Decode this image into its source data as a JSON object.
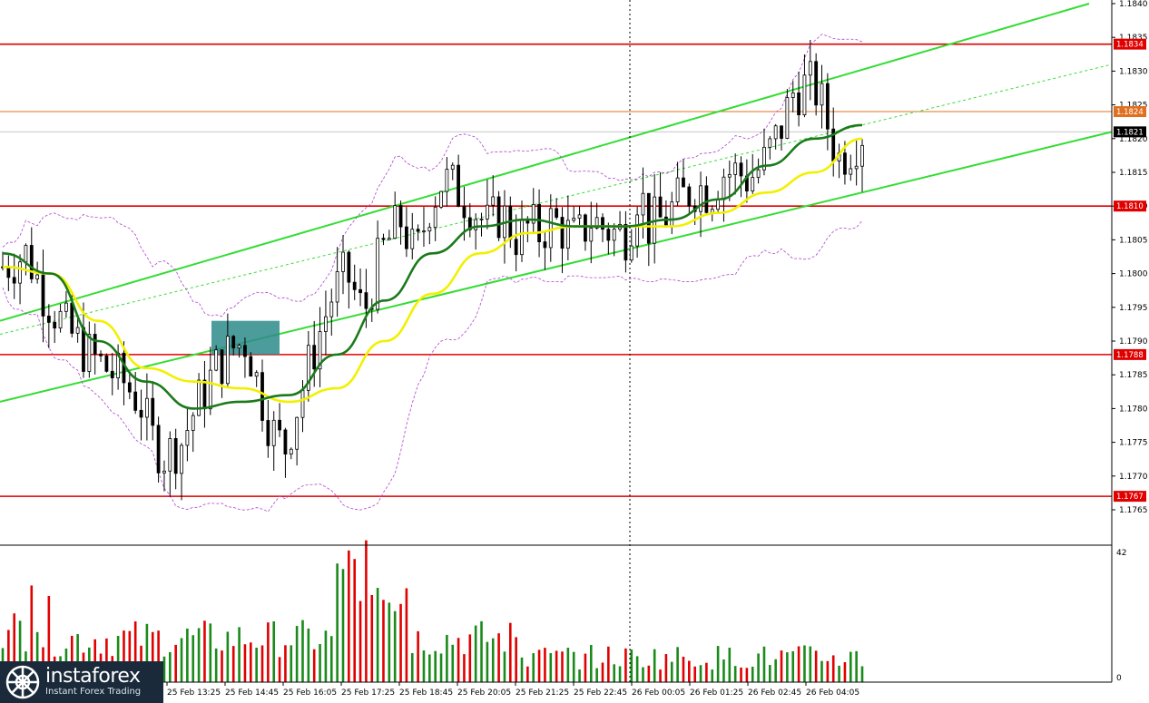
{
  "chart_data": {
    "type": "candlestick",
    "price_axis": {
      "min": 1.1762,
      "max": 1.184,
      "ticks": [
        "1.1840",
        "1.1835",
        "1.1830",
        "1.1825",
        "1.1820",
        "1.1815",
        "1.1810",
        "1.1805",
        "1.1800",
        "1.1795",
        "1.1790",
        "1.1785",
        "1.1780",
        "1.1775",
        "1.1770",
        "1.1765"
      ]
    },
    "time_labels": [
      "25 Feb 13:25",
      "25 Feb 14:45",
      "25 Feb 16:05",
      "25 Feb 17:25",
      "25 Feb 18:45",
      "25 Feb 20:05",
      "25 Feb 21:25",
      "25 Feb 22:45",
      "26 Feb 00:05",
      "26 Feb 01:25",
      "26 Feb 02:45",
      "26 Feb 04:05"
    ],
    "horizontal_levels": [
      {
        "price": 1.1834,
        "label": "1.1834",
        "color": "#e00000"
      },
      {
        "price": 1.1824,
        "label": "1.1824",
        "color": "#e07020"
      },
      {
        "price": 1.181,
        "label": "1.1810",
        "color": "#e00000"
      },
      {
        "price": 1.1788,
        "label": "1.1788",
        "color": "#e00000"
      },
      {
        "price": 1.1767,
        "label": "1.1767",
        "color": "#e00000"
      }
    ],
    "current_price": {
      "price": 1.1821,
      "label": "1.1821"
    },
    "candles": {
      "count": 150,
      "close_path": [
        1.1801,
        1.1803,
        1.1797,
        1.1792,
        1.1788,
        1.1786,
        1.1784,
        1.1781,
        1.1776,
        1.1773,
        1.1775,
        1.178,
        1.1786,
        1.1789,
        1.179,
        1.1784,
        1.1777,
        1.1774,
        1.1781,
        1.1788,
        1.1797,
        1.18,
        1.1794,
        1.1803,
        1.1808,
        1.1802,
        1.181,
        1.1814,
        1.1812,
        1.1809,
        1.1807,
        1.1809,
        1.1805,
        1.1807,
        1.1806,
        1.1808,
        1.1806,
        1.1805,
        1.1808,
        1.1807,
        1.1806,
        1.1806,
        1.1813,
        1.1807,
        1.1808,
        1.1811,
        1.1813,
        1.1812,
        1.1815,
        1.1815,
        1.1814,
        1.1816,
        1.1821,
        1.1827,
        1.1828,
        1.1827,
        1.1822,
        1.1817,
        1.1819,
        1.1821
      ],
      "close_path_x": [
        0,
        7,
        12,
        18,
        25,
        30,
        35,
        40,
        43,
        47,
        52,
        56,
        62,
        67,
        71,
        74,
        78,
        82,
        86,
        90,
        96,
        100,
        105,
        110,
        116,
        120,
        124,
        128,
        133,
        138,
        141,
        145,
        150,
        153,
        156,
        160,
        164,
        167,
        171,
        174,
        178,
        182,
        185,
        188,
        192,
        197,
        202,
        206,
        209,
        214,
        217,
        221,
        226,
        230,
        234,
        237,
        240,
        243,
        247,
        250
      ],
      "up_color": "#000000",
      "down_color": "#000000"
    },
    "moving_averages": [
      {
        "color": "#f2f000",
        "path": [
          1.1801,
          1.18,
          1.1793,
          1.1786,
          1.1784,
          1.1783,
          1.1781,
          1.1783,
          1.179,
          1.1797,
          1.1803,
          1.1806,
          1.1807,
          1.1807,
          1.1807,
          1.1809,
          1.1812,
          1.1815,
          1.182
        ]
      },
      {
        "color": "#1a7a1a",
        "path": [
          1.1803,
          1.18,
          1.179,
          1.1784,
          1.178,
          1.1781,
          1.1782,
          1.1788,
          1.1796,
          1.1803,
          1.1807,
          1.1808,
          1.1807,
          1.1807,
          1.1808,
          1.1811,
          1.1816,
          1.182,
          1.1822
        ]
      }
    ],
    "channel": {
      "color": "#33dd33",
      "upper": [
        [
          0,
          1.1793
        ],
        [
          1200,
          1.184
        ]
      ],
      "lower": [
        [
          0,
          1.1781
        ],
        [
          1225,
          1.1821
        ]
      ],
      "mid_dashed": [
        [
          0,
          1.1791
        ],
        [
          1225,
          1.1831
        ]
      ]
    },
    "signal_box": {
      "x_from": 233,
      "x_to": 308,
      "price_top": 1.1793,
      "price_bottom": 1.1788,
      "color": "#2e8b8b"
    },
    "volume": {
      "max_label": "42",
      "min_label": "0",
      "max": 42,
      "up_color": "#1a8a1a",
      "down_color": "#e00000"
    }
  },
  "brand": {
    "name": "instaforex",
    "tagline": "Instant Forex Trading"
  }
}
